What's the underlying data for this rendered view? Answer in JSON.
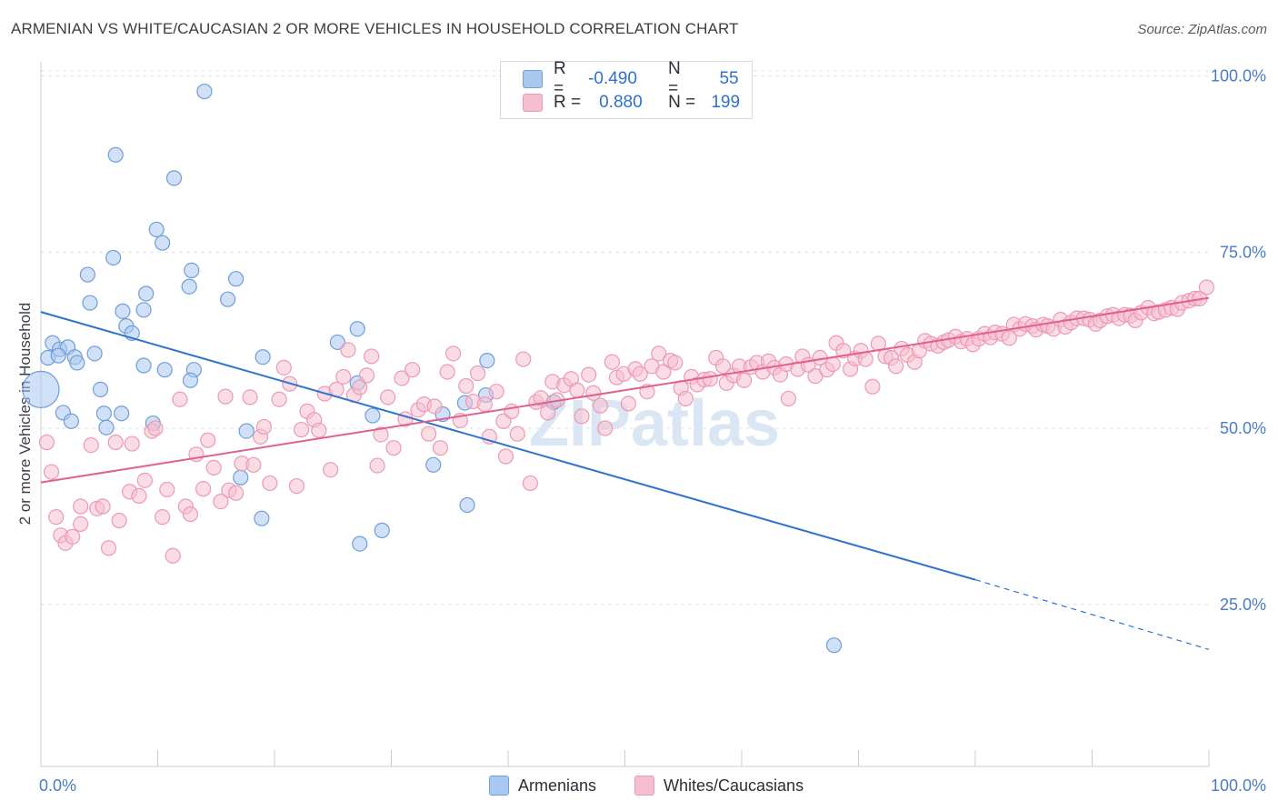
{
  "title": "ARMENIAN VS WHITE/CAUCASIAN 2 OR MORE VEHICLES IN HOUSEHOLD CORRELATION CHART",
  "source": "Source: ZipAtlas.com",
  "watermark": "ZIPatlas",
  "legend_top": {
    "rows": [
      {
        "r_label": "R =",
        "r_value": "-0.490",
        "n_label": "N =",
        "n_value": "55"
      },
      {
        "r_label": "R =",
        "r_value": "0.880",
        "n_label": "N =",
        "n_value": "199"
      }
    ]
  },
  "legend_bottom": [
    "Armenians",
    "Whites/Caucasians"
  ],
  "colors": {
    "armenian_fill": "#a9c8f0",
    "armenian_stroke": "#6f9ed8",
    "armenian_line": "#2f73d0",
    "white_fill": "#f6bfd0",
    "white_stroke": "#ec9ab4",
    "white_line": "#e2608e",
    "tick": "#4a7cc6",
    "grid": "#dde1e6"
  },
  "chart_data": {
    "type": "scatter",
    "ylabel": "2 or more Vehicles in Household",
    "xlim": [
      0,
      100
    ],
    "ylim": [
      2,
      102
    ],
    "x_ticks": [
      "0.0%",
      "100.0%"
    ],
    "y_ticks": [
      {
        "value": 100,
        "label": "100.0%"
      },
      {
        "value": 75,
        "label": "75.0%"
      },
      {
        "value": 50,
        "label": "50.0%"
      },
      {
        "value": 25,
        "label": "25.0%"
      }
    ],
    "series": [
      {
        "name": "Armenians",
        "trend": {
          "x0": 0,
          "y0": 66.5,
          "x1": 80,
          "y1": 28.5,
          "dash_to_x": 100,
          "dash_to_y": 18.6
        },
        "points": [
          [
            0,
            55.5
          ],
          [
            14.0,
            97.8
          ],
          [
            6.4,
            88.8
          ],
          [
            11.4,
            85.5
          ],
          [
            9.9,
            78.2
          ],
          [
            10.4,
            76.3
          ],
          [
            6.2,
            74.2
          ],
          [
            12.9,
            72.4
          ],
          [
            4.0,
            71.8
          ],
          [
            16.7,
            71.2
          ],
          [
            12.7,
            70.1
          ],
          [
            9.0,
            69.1
          ],
          [
            16.0,
            68.3
          ],
          [
            4.2,
            67.8
          ],
          [
            7.0,
            66.6
          ],
          [
            8.8,
            66.8
          ],
          [
            7.3,
            64.5
          ],
          [
            7.8,
            63.5
          ],
          [
            27.1,
            64.1
          ],
          [
            25.4,
            62.2
          ],
          [
            0.6,
            60.0
          ],
          [
            1.0,
            62.1
          ],
          [
            1.6,
            61.2
          ],
          [
            2.3,
            61.5
          ],
          [
            1.5,
            60.3
          ],
          [
            2.9,
            60.1
          ],
          [
            3.1,
            59.3
          ],
          [
            4.6,
            60.6
          ],
          [
            19.0,
            60.1
          ],
          [
            8.8,
            58.9
          ],
          [
            10.6,
            58.3
          ],
          [
            13.1,
            58.3
          ],
          [
            12.8,
            56.8
          ],
          [
            27.1,
            56.4
          ],
          [
            38.2,
            59.6
          ],
          [
            5.1,
            55.5
          ],
          [
            38.1,
            54.7
          ],
          [
            1.9,
            52.2
          ],
          [
            5.4,
            52.1
          ],
          [
            6.9,
            52.1
          ],
          [
            2.6,
            51.0
          ],
          [
            9.6,
            50.7
          ],
          [
            5.6,
            50.1
          ],
          [
            17.6,
            49.6
          ],
          [
            28.4,
            51.8
          ],
          [
            34.4,
            52.0
          ],
          [
            36.3,
            53.6
          ],
          [
            43.9,
            53.7
          ],
          [
            17.1,
            43.0
          ],
          [
            33.6,
            44.8
          ],
          [
            36.5,
            39.1
          ],
          [
            18.9,
            37.2
          ],
          [
            29.2,
            35.5
          ],
          [
            27.3,
            33.6
          ],
          [
            67.9,
            19.2
          ]
        ]
      },
      {
        "name": "Whites/Caucasians",
        "trend": {
          "x0": 0,
          "y0": 42.3,
          "x1": 100,
          "y1": 68.5
        },
        "points": [
          [
            0.5,
            48.0
          ],
          [
            0.9,
            43.8
          ],
          [
            1.3,
            37.4
          ],
          [
            1.7,
            34.8
          ],
          [
            2.1,
            33.7
          ],
          [
            2.7,
            34.6
          ],
          [
            3.4,
            36.4
          ],
          [
            3.4,
            38.9
          ],
          [
            4.3,
            47.6
          ],
          [
            4.8,
            38.6
          ],
          [
            5.3,
            38.9
          ],
          [
            5.8,
            33.0
          ],
          [
            6.4,
            48.0
          ],
          [
            6.7,
            36.9
          ],
          [
            7.6,
            41.0
          ],
          [
            7.8,
            47.8
          ],
          [
            8.4,
            40.4
          ],
          [
            8.9,
            42.6
          ],
          [
            9.5,
            49.6
          ],
          [
            9.8,
            50.0
          ],
          [
            10.4,
            37.4
          ],
          [
            10.8,
            41.3
          ],
          [
            11.3,
            31.9
          ],
          [
            11.9,
            54.1
          ],
          [
            12.4,
            38.9
          ],
          [
            12.8,
            37.8
          ],
          [
            13.3,
            46.3
          ],
          [
            13.9,
            41.4
          ],
          [
            14.3,
            48.3
          ],
          [
            14.8,
            44.4
          ],
          [
            15.4,
            39.6
          ],
          [
            15.8,
            54.5
          ],
          [
            16.1,
            41.2
          ],
          [
            16.7,
            40.8
          ],
          [
            17.2,
            45.0
          ],
          [
            17.9,
            54.4
          ],
          [
            18.2,
            44.8
          ],
          [
            18.8,
            48.8
          ],
          [
            19.1,
            50.2
          ],
          [
            19.6,
            42.2
          ],
          [
            20.4,
            54.1
          ],
          [
            20.8,
            58.6
          ],
          [
            21.3,
            56.3
          ],
          [
            21.9,
            41.8
          ],
          [
            22.3,
            49.8
          ],
          [
            22.8,
            52.4
          ],
          [
            23.4,
            51.2
          ],
          [
            23.8,
            49.7
          ],
          [
            24.3,
            54.9
          ],
          [
            24.8,
            44.1
          ],
          [
            25.3,
            55.5
          ],
          [
            25.9,
            57.3
          ],
          [
            26.3,
            61.1
          ],
          [
            26.8,
            54.7
          ],
          [
            27.3,
            55.8
          ],
          [
            27.9,
            57.5
          ],
          [
            28.3,
            60.2
          ],
          [
            28.8,
            44.7
          ],
          [
            29.1,
            49.1
          ],
          [
            29.7,
            54.4
          ],
          [
            30.2,
            47.2
          ],
          [
            30.9,
            57.1
          ],
          [
            31.2,
            51.3
          ],
          [
            31.8,
            58.3
          ],
          [
            32.3,
            52.6
          ],
          [
            32.8,
            53.4
          ],
          [
            33.2,
            49.2
          ],
          [
            33.7,
            53.1
          ],
          [
            34.2,
            47.2
          ],
          [
            34.8,
            58.0
          ],
          [
            35.3,
            60.6
          ],
          [
            35.9,
            51.1
          ],
          [
            36.4,
            56.0
          ],
          [
            37.0,
            53.8
          ],
          [
            37.4,
            57.8
          ],
          [
            38.0,
            53.4
          ],
          [
            38.4,
            48.8
          ],
          [
            39.0,
            55.2
          ],
          [
            39.6,
            51.0
          ],
          [
            39.8,
            46.0
          ],
          [
            40.3,
            52.4
          ],
          [
            40.8,
            49.2
          ],
          [
            41.3,
            59.8
          ],
          [
            41.9,
            42.2
          ],
          [
            42.4,
            53.7
          ],
          [
            42.8,
            54.3
          ],
          [
            43.4,
            52.2
          ],
          [
            43.8,
            56.6
          ],
          [
            44.2,
            54.0
          ],
          [
            44.8,
            56.1
          ],
          [
            45.4,
            57.0
          ],
          [
            45.9,
            55.4
          ],
          [
            46.3,
            51.7
          ],
          [
            46.9,
            57.6
          ],
          [
            47.3,
            55.0
          ],
          [
            47.9,
            53.2
          ],
          [
            48.3,
            50.0
          ],
          [
            48.9,
            59.4
          ],
          [
            49.3,
            57.2
          ],
          [
            49.9,
            57.7
          ],
          [
            50.3,
            53.5
          ],
          [
            50.9,
            58.4
          ],
          [
            51.3,
            57.7
          ],
          [
            51.9,
            55.2
          ],
          [
            52.3,
            58.8
          ],
          [
            52.9,
            60.6
          ],
          [
            53.3,
            58.0
          ],
          [
            53.9,
            59.6
          ],
          [
            54.3,
            59.3
          ],
          [
            54.8,
            55.7
          ],
          [
            55.2,
            54.2
          ],
          [
            55.7,
            57.3
          ],
          [
            56.2,
            56.2
          ],
          [
            56.8,
            56.9
          ],
          [
            57.3,
            57.0
          ],
          [
            57.8,
            60.0
          ],
          [
            58.4,
            58.8
          ],
          [
            58.7,
            56.4
          ],
          [
            59.3,
            57.5
          ],
          [
            59.8,
            58.8
          ],
          [
            60.2,
            56.8
          ],
          [
            60.8,
            58.7
          ],
          [
            61.3,
            59.3
          ],
          [
            61.8,
            58.0
          ],
          [
            62.3,
            59.5
          ],
          [
            62.8,
            58.6
          ],
          [
            63.3,
            57.6
          ],
          [
            63.8,
            59.1
          ],
          [
            64.0,
            54.2
          ],
          [
            64.8,
            58.4
          ],
          [
            65.2,
            60.2
          ],
          [
            65.7,
            59.0
          ],
          [
            66.3,
            57.4
          ],
          [
            66.7,
            60.0
          ],
          [
            67.3,
            58.3
          ],
          [
            67.8,
            59.1
          ],
          [
            68.1,
            62.1
          ],
          [
            68.7,
            61.0
          ],
          [
            69.3,
            58.4
          ],
          [
            69.7,
            59.9
          ],
          [
            70.2,
            61.0
          ],
          [
            70.6,
            59.8
          ],
          [
            71.2,
            55.9
          ],
          [
            71.7,
            62.0
          ],
          [
            72.3,
            60.2
          ],
          [
            72.8,
            60.0
          ],
          [
            73.2,
            58.8
          ],
          [
            73.7,
            61.3
          ],
          [
            74.2,
            60.4
          ],
          [
            74.8,
            59.4
          ],
          [
            75.2,
            61.0
          ],
          [
            75.7,
            62.4
          ],
          [
            76.2,
            62.0
          ],
          [
            76.8,
            61.7
          ],
          [
            77.3,
            62.2
          ],
          [
            77.7,
            62.5
          ],
          [
            78.3,
            63.0
          ],
          [
            78.8,
            62.3
          ],
          [
            79.3,
            62.7
          ],
          [
            79.8,
            61.9
          ],
          [
            80.3,
            62.7
          ],
          [
            80.8,
            63.4
          ],
          [
            81.3,
            62.9
          ],
          [
            81.7,
            63.6
          ],
          [
            82.3,
            63.4
          ],
          [
            82.9,
            62.8
          ],
          [
            83.3,
            64.7
          ],
          [
            83.8,
            64.1
          ],
          [
            84.3,
            64.8
          ],
          [
            84.9,
            64.5
          ],
          [
            85.2,
            64.0
          ],
          [
            85.8,
            64.7
          ],
          [
            86.2,
            64.5
          ],
          [
            86.7,
            64.1
          ],
          [
            87.3,
            65.4
          ],
          [
            87.7,
            64.4
          ],
          [
            88.2,
            65.0
          ],
          [
            88.7,
            65.6
          ],
          [
            89.3,
            65.6
          ],
          [
            89.8,
            65.4
          ],
          [
            90.3,
            64.8
          ],
          [
            90.7,
            65.3
          ],
          [
            91.3,
            65.9
          ],
          [
            91.8,
            66.1
          ],
          [
            92.3,
            65.6
          ],
          [
            92.8,
            66.1
          ],
          [
            93.3,
            66.0
          ],
          [
            93.7,
            65.3
          ],
          [
            94.2,
            66.4
          ],
          [
            94.8,
            67.1
          ],
          [
            95.3,
            66.3
          ],
          [
            95.7,
            66.5
          ],
          [
            96.3,
            66.8
          ],
          [
            96.8,
            67.1
          ],
          [
            97.3,
            66.9
          ],
          [
            97.7,
            67.8
          ],
          [
            98.3,
            68.1
          ],
          [
            98.8,
            68.4
          ],
          [
            99.2,
            68.4
          ],
          [
            99.8,
            70.0
          ]
        ]
      }
    ]
  }
}
